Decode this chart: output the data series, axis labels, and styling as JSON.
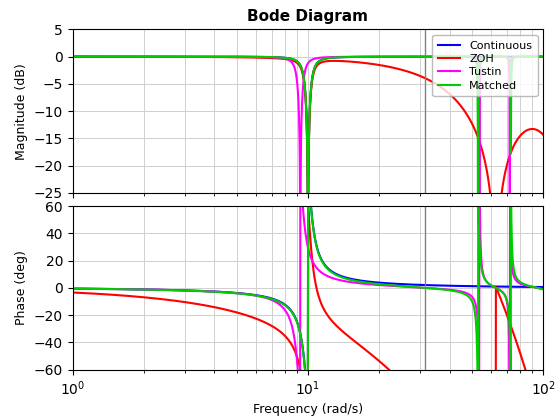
{
  "title": "Bode Diagram",
  "xlabel": "Frequency (rad/s)",
  "ylabel_mag": "Magnitude (dB)",
  "ylabel_phase": "Phase (deg)",
  "freq_range": [
    1.0,
    100.0
  ],
  "mag_ylim": [
    -25,
    5
  ],
  "phase_ylim": [
    -60,
    60
  ],
  "mag_yticks": [
    5,
    0,
    -5,
    -10,
    -15,
    -20,
    -25
  ],
  "phase_yticks": [
    60,
    40,
    20,
    0,
    -20,
    -40,
    -60
  ],
  "vline_x": 31.4159,
  "colors": {
    "Continuous": "#0000ff",
    "ZOH": "#ff0000",
    "Tustin": "#ff00ff",
    "Matched": "#00cc00"
  },
  "legend_labels": [
    "Continuous",
    "ZOH",
    "Tustin",
    "Matched"
  ],
  "grid_color": "#d0d0d0",
  "vline_color": "#808080",
  "background_color": "#ffffff",
  "fs": 62.8318,
  "wn": 10.0,
  "zeta": 0.05
}
